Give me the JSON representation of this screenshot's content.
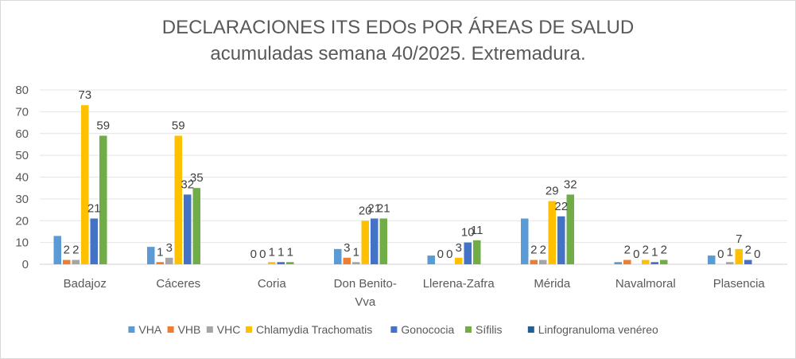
{
  "chart_data": {
    "type": "bar",
    "title": "DECLARACIONES ITS EDOs POR ÁREAS DE SALUD",
    "subtitle": "acumuladas semana 40/2025. Extremadura.",
    "categories": [
      "Badajoz",
      "Cáceres",
      "Coria",
      "Don Benito-Vva",
      "Llerena-Zafra",
      "Mérida",
      "Navalmoral",
      "Plasencia"
    ],
    "ylim": [
      0,
      80
    ],
    "yticks": [
      0,
      10,
      20,
      30,
      40,
      50,
      60,
      70,
      80
    ],
    "grid": true,
    "legend_position": "bottom",
    "series": [
      {
        "name": "VHA",
        "color": "#5B9BD5",
        "values": [
          13,
          8,
          0,
          7,
          4,
          21,
          1,
          4
        ],
        "labels": [
          null,
          null,
          null,
          null,
          null,
          null,
          null,
          null
        ]
      },
      {
        "name": "VHB",
        "color": "#ED7D31",
        "values": [
          2,
          1,
          0,
          3,
          0,
          2,
          2,
          0
        ],
        "labels": [
          "2",
          "1",
          "0",
          "3",
          "0",
          "2",
          "2",
          "0"
        ]
      },
      {
        "name": "VHC",
        "color": "#A5A5A5",
        "values": [
          2,
          3,
          0,
          1,
          0,
          2,
          0,
          1
        ],
        "labels": [
          "2",
          "3",
          "0",
          "1",
          "0",
          "2",
          "0",
          "1"
        ]
      },
      {
        "name": "Chlamydia Trachomatis",
        "color": "#FFC000",
        "values": [
          73,
          59,
          1,
          20,
          3,
          29,
          2,
          7
        ],
        "labels": [
          "73",
          "59",
          "1",
          "20",
          "3",
          "29",
          "2",
          "7"
        ]
      },
      {
        "name": "Gonococia",
        "color": "#4472C4",
        "values": [
          21,
          32,
          1,
          21,
          10,
          22,
          1,
          2
        ],
        "labels": [
          "21",
          "32",
          "1",
          "21",
          "10",
          "22",
          "1",
          "2"
        ]
      },
      {
        "name": "Sífilis",
        "color": "#70AD47",
        "values": [
          59,
          35,
          1,
          21,
          11,
          32,
          2,
          0
        ],
        "labels": [
          "59",
          "35",
          "1",
          "21",
          "11",
          "32",
          "2",
          "0"
        ]
      },
      {
        "name": "Linfogranuloma venéreo",
        "color": "#255E91",
        "values": [
          0,
          0,
          0,
          0,
          0,
          0,
          0,
          0
        ],
        "labels": [
          null,
          null,
          null,
          null,
          null,
          null,
          null,
          null
        ]
      }
    ]
  }
}
